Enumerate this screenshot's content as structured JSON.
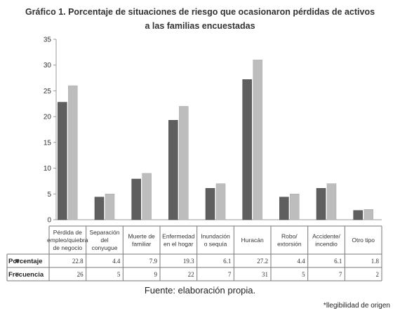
{
  "title_line1": "Gráfico 1. Porcentaje de situaciones de riesgo que ocasionaron pérdidas de activos",
  "title_line2": "a las familias encuestadas",
  "source_note": "Fuente: elaboración propia.",
  "footnote": "*llegibilidad de origen",
  "chart_data": {
    "type": "bar",
    "categories": [
      [
        "Pérdida de",
        "empleo/quiebra",
        "de negocio"
      ],
      [
        "Separación",
        "del",
        "conyugue"
      ],
      [
        "Muerte de",
        "familiar"
      ],
      [
        "Enfermedad",
        "en el hogar"
      ],
      [
        "Inundación",
        "o sequía"
      ],
      [
        "Huracán"
      ],
      [
        "Robo/",
        "extorsión"
      ],
      [
        "Accidente/",
        "incendio"
      ],
      [
        "Otro tipo"
      ]
    ],
    "series": [
      {
        "name": "Porcentaje",
        "values": [
          22.8,
          4.4,
          7.9,
          19.3,
          6.1,
          27.2,
          4.4,
          6.1,
          1.8
        ],
        "labels": [
          "22.8",
          "4.4",
          "7.9",
          "19.3",
          "6.1",
          "27.2",
          "4.4",
          "6.1",
          "1.8"
        ],
        "color": "#5f5f5f"
      },
      {
        "name": "Frecuencia",
        "values": [
          26,
          5,
          9,
          22,
          7,
          31,
          5,
          7,
          2
        ],
        "labels": [
          "26",
          "5",
          "9",
          "22",
          "7",
          "31",
          "5",
          "7",
          "2"
        ],
        "color": "#bdbdbd"
      }
    ],
    "yticks": [
      "0",
      "5",
      "10",
      "15",
      "20",
      "25",
      "30",
      "35"
    ],
    "ylim": [
      0,
      35
    ]
  }
}
